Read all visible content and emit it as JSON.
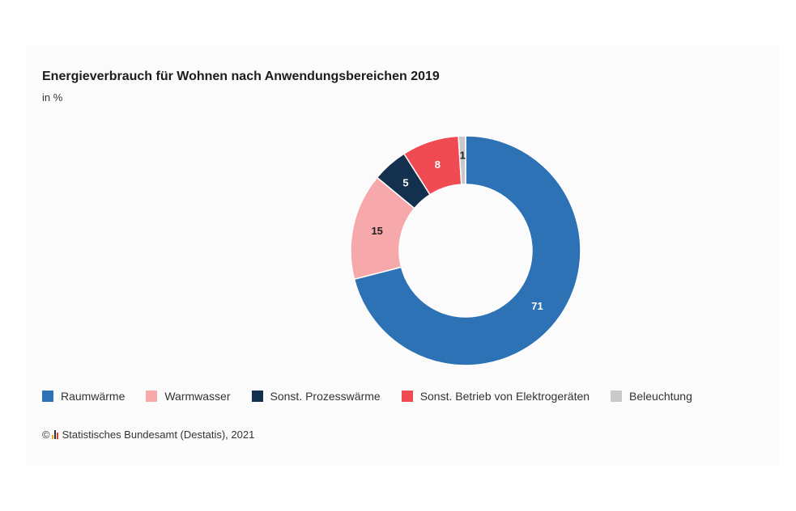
{
  "chart_data": {
    "type": "pie",
    "title": "Energieverbrauch für Wohnen nach Anwendungsbereichen 2019",
    "subtitle": "in %",
    "categories": [
      "Raumwärme",
      "Warmwasser",
      "Sonst. Prozesswärme",
      "Sonst. Betrieb von Elektrogeräten",
      "Beleuchtung"
    ],
    "values": [
      71,
      15,
      5,
      8,
      1
    ],
    "colors": [
      "#2c72b5",
      "#f7a8aa",
      "#14304f",
      "#f04a52",
      "#c9c9c9"
    ],
    "label_colors": [
      "#ffffff",
      "#222222",
      "#ffffff",
      "#ffffff",
      "#222222"
    ],
    "donut": true,
    "legend_position": "bottom"
  },
  "source": {
    "copyright": "©",
    "text": "Statistisches Bundesamt (Destatis), 2021"
  }
}
